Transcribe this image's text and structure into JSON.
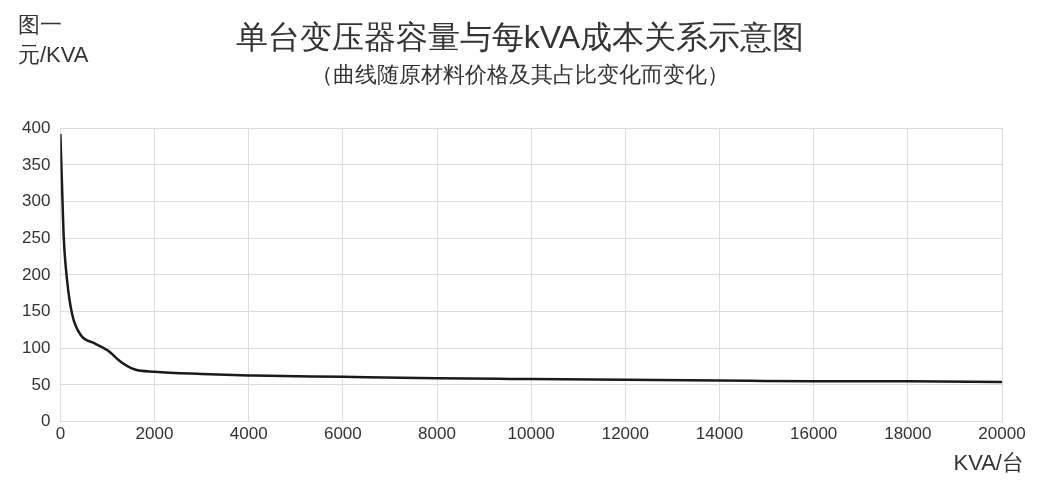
{
  "chart_data": {
    "type": "line",
    "title": "单台变压器容量与每kVA成本关系示意图",
    "subtitle": "（曲线随原材料价格及其占比变化而变化）",
    "annotations": [
      "图一"
    ],
    "xlabel": "KVA/台",
    "ylabel": "元/KVA",
    "x": [
      0,
      36,
      72,
      144,
      252,
      432,
      720,
      1008,
      1295,
      1583,
      2000,
      3000,
      4000,
      6000,
      8000,
      10000,
      12000,
      14000,
      16000,
      18000,
      20000
    ],
    "series": [
      {
        "color": "#1a1a1a",
        "values": [
          392,
          320,
          251,
          192,
          146,
          118,
          107,
          97,
          81,
          71,
          68,
          65,
          63,
          61,
          59,
          58,
          57,
          56,
          55,
          55,
          54
        ]
      }
    ],
    "xlim": [
      0,
      20000
    ],
    "xticks": [
      0,
      2000,
      4000,
      6000,
      8000,
      10000,
      12000,
      14000,
      16000,
      18000,
      20000
    ],
    "ylim": [
      0,
      400
    ],
    "yticks": [
      0,
      50,
      100,
      150,
      200,
      250,
      300,
      350,
      400
    ],
    "grid": true,
    "legend": false,
    "marker": "none",
    "line_style": "solid"
  }
}
